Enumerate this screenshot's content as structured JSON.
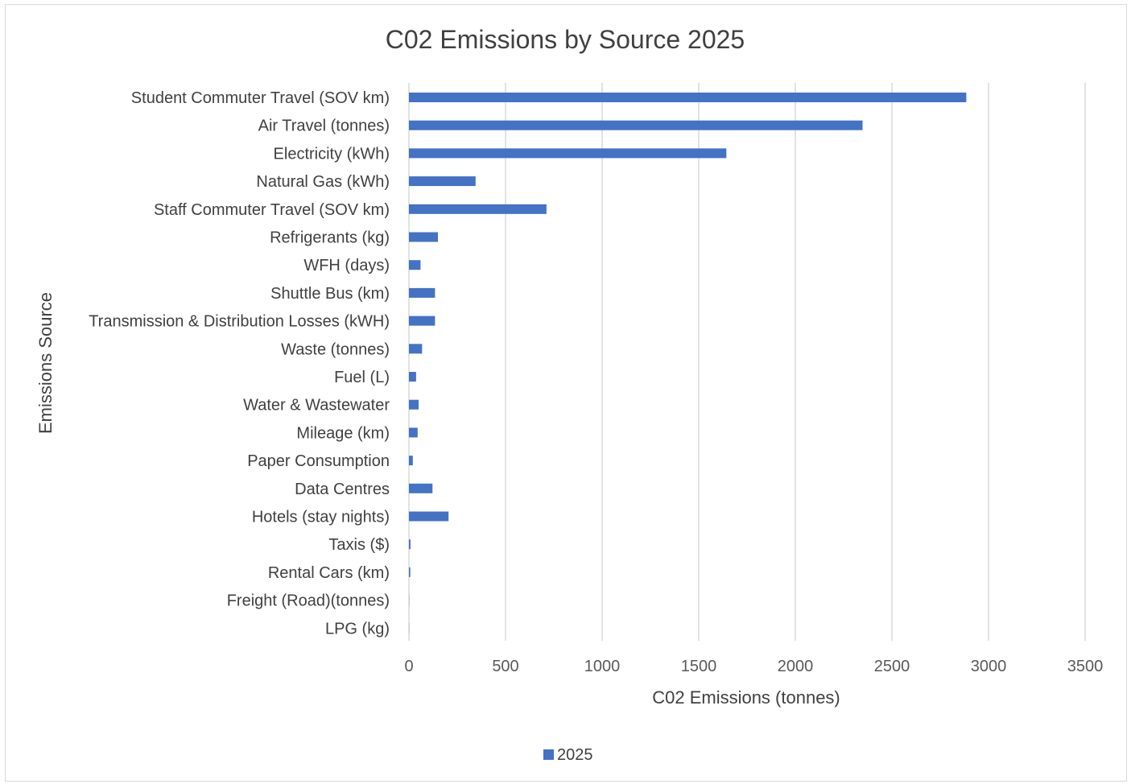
{
  "chart_data": {
    "type": "bar",
    "orientation": "horizontal",
    "title": "C02 Emissions by Source 2025",
    "xlabel": "C02 Emissions (tonnes)",
    "ylabel": "Emissions Source",
    "xlim": [
      0,
      3500
    ],
    "xticks": [
      "0",
      "500",
      "1000",
      "1500",
      "2000",
      "2500",
      "3000",
      "3500"
    ],
    "xtick_values": [
      0,
      500,
      1000,
      1500,
      2000,
      2500,
      3000,
      3500
    ],
    "grid": "vertical gridlines",
    "legend_position": "bottom",
    "categories": [
      "Student Commuter Travel (SOV km)",
      "Air Travel (tonnes)",
      "Electricity (kWh)",
      "Natural Gas (kWh)",
      "Staff Commuter Travel (SOV km)",
      "Refrigerants (kg)",
      "WFH (days)",
      "Shuttle Bus (km)",
      "Transmission & Distribution Losses (kWH)",
      "Waste (tonnes)",
      "Fuel (L)",
      "Water & Wastewater",
      "Mileage (km)",
      "Paper Consumption",
      "Data Centres",
      "Hotels (stay nights)",
      "Taxis ($)",
      "Rental Cars (km)",
      "Freight (Road)(tonnes)",
      "LPG (kg)"
    ],
    "series": [
      {
        "name": "2025",
        "color": "#4472c4",
        "values": [
          2885,
          2348,
          1643,
          345,
          712,
          150,
          60,
          135,
          135,
          68,
          37,
          50,
          45,
          20,
          122,
          205,
          8,
          7,
          1,
          1
        ]
      }
    ]
  }
}
